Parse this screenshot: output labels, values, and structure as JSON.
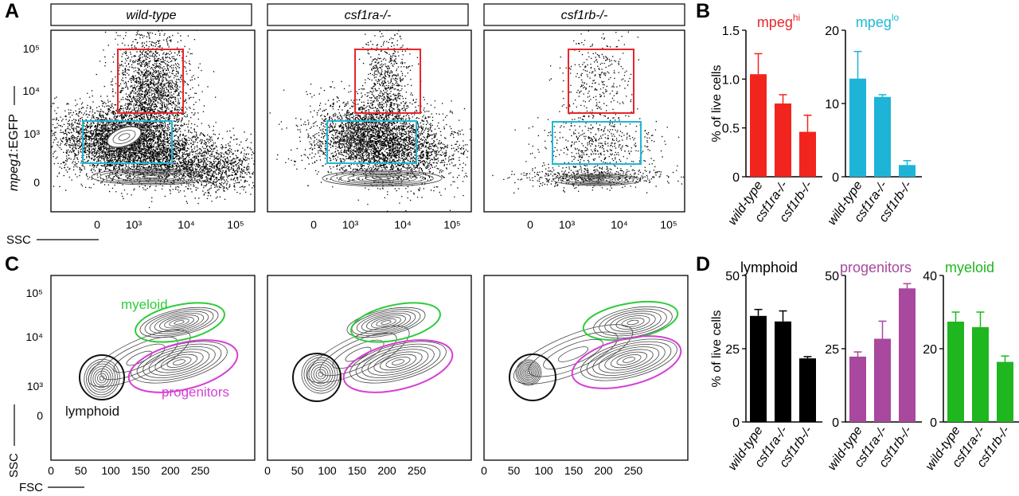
{
  "panels": {
    "A": "A",
    "B": "B",
    "C": "C",
    "D": "D"
  },
  "flow_A": {
    "genotypes": [
      "wild-type",
      "csf1ra-/-",
      "csf1rb-/-"
    ],
    "ylabel_italic": "mpeg1",
    "ylabel_rest": ":EGFP",
    "xlabel": "SSC",
    "y_ticks": [
      "10⁵",
      "10⁴",
      "10³",
      "0"
    ],
    "x_ticks": [
      "0",
      "10³",
      "10⁴",
      "10⁵"
    ],
    "gate_colors": {
      "hi": "#e8262a",
      "lo": "#1fb8d6"
    }
  },
  "flow_C": {
    "ylabel": "SSC",
    "xlabel": "FSC",
    "y_ticks": [
      "10⁵",
      "10⁴",
      "10³",
      "0"
    ],
    "x_ticks": [
      "0",
      "50",
      "100",
      "150",
      "200",
      "250"
    ],
    "gates": {
      "myeloid": "myeloid",
      "progenitors": "progenitors",
      "lymphoid": "lymphoid"
    },
    "gate_colors": {
      "myeloid": "#2ecc3a",
      "progenitors": "#d63fd6",
      "lymphoid": "#111111"
    }
  },
  "chart_data": [
    {
      "type": "bar",
      "title": "mpeghi",
      "title_main": "mpeg",
      "title_sup": "hi",
      "ylabel": "% of live cells",
      "categories": [
        "wild-type",
        "csf1ra-/-",
        "csf1rb-/-"
      ],
      "values": [
        1.05,
        0.75,
        0.46
      ],
      "errors": [
        0.21,
        0.09,
        0.17
      ],
      "ylim": [
        0,
        1.5
      ],
      "yticks": [
        0,
        0.5,
        1.0,
        1.5
      ],
      "ytick_labels": [
        "0",
        "0.5",
        "1.0",
        "1.5"
      ],
      "color": "#f2251e"
    },
    {
      "type": "bar",
      "title": "mpeglo",
      "title_main": "mpeg",
      "title_sup": "lo",
      "ylabel": "",
      "categories": [
        "wild-type",
        "csf1ra-/-",
        "csf1rb-/-"
      ],
      "values": [
        13.4,
        10.9,
        1.6
      ],
      "errors": [
        3.7,
        0.3,
        0.6
      ],
      "ylim": [
        0,
        20
      ],
      "yticks": [
        0,
        10,
        20
      ],
      "ytick_labels": [
        "0",
        "10",
        "20"
      ],
      "color": "#1db4d8"
    },
    {
      "type": "bar",
      "title": "lymphoid",
      "ylabel": "% of live cells",
      "categories": [
        "wild-type",
        "csf1ra-/-",
        "csf1rb-/-"
      ],
      "values": [
        36.2,
        34.3,
        21.7
      ],
      "errors": [
        2.2,
        3.6,
        0.6
      ],
      "ylim": [
        0,
        50
      ],
      "yticks": [
        0,
        25,
        50
      ],
      "ytick_labels": [
        "0",
        "25",
        "50"
      ],
      "color": "#000000"
    },
    {
      "type": "bar",
      "title": "progenitors",
      "ylabel": "",
      "categories": [
        "wild-type",
        "csf1ra-/-",
        "csf1rb-/-"
      ],
      "values": [
        22.3,
        28.4,
        45.6
      ],
      "errors": [
        1.6,
        6.0,
        1.6
      ],
      "ylim": [
        0,
        50
      ],
      "yticks": [
        0,
        25,
        50
      ],
      "ytick_labels": [
        "0",
        "25",
        "50"
      ],
      "color": "#a8489e"
    },
    {
      "type": "bar",
      "title": "myeloid",
      "ylabel": "",
      "categories": [
        "wild-type",
        "csf1ra-/-",
        "csf1rb-/-"
      ],
      "values": [
        27.4,
        25.9,
        16.4
      ],
      "errors": [
        2.6,
        4.1,
        1.6
      ],
      "ylim": [
        0,
        40
      ],
      "yticks": [
        0,
        20,
        40
      ],
      "ytick_labels": [
        "0",
        "20",
        "40"
      ],
      "color": "#1fb61f"
    }
  ]
}
